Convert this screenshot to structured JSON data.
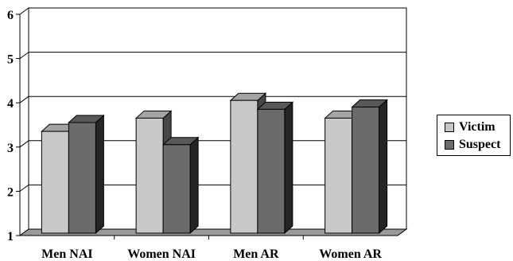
{
  "chart_data": {
    "type": "bar",
    "categories": [
      "Men NAI",
      "Women NAI",
      "Men AR",
      "Women AR"
    ],
    "series": [
      {
        "name": "Victim",
        "values": [
          3.3,
          3.6,
          4.0,
          3.6
        ],
        "color": "#c8c8c8"
      },
      {
        "name": "Suspect",
        "values": [
          3.5,
          3.0,
          3.8,
          3.85
        ],
        "color": "#6b6b6b"
      }
    ],
    "yticks": [
      "1",
      "2",
      "3",
      "4",
      "5",
      "6"
    ],
    "ylim": [
      1,
      6
    ],
    "grid": true,
    "style": "3d",
    "legend_position": "right",
    "title": "",
    "xlabel": "",
    "ylabel": ""
  }
}
